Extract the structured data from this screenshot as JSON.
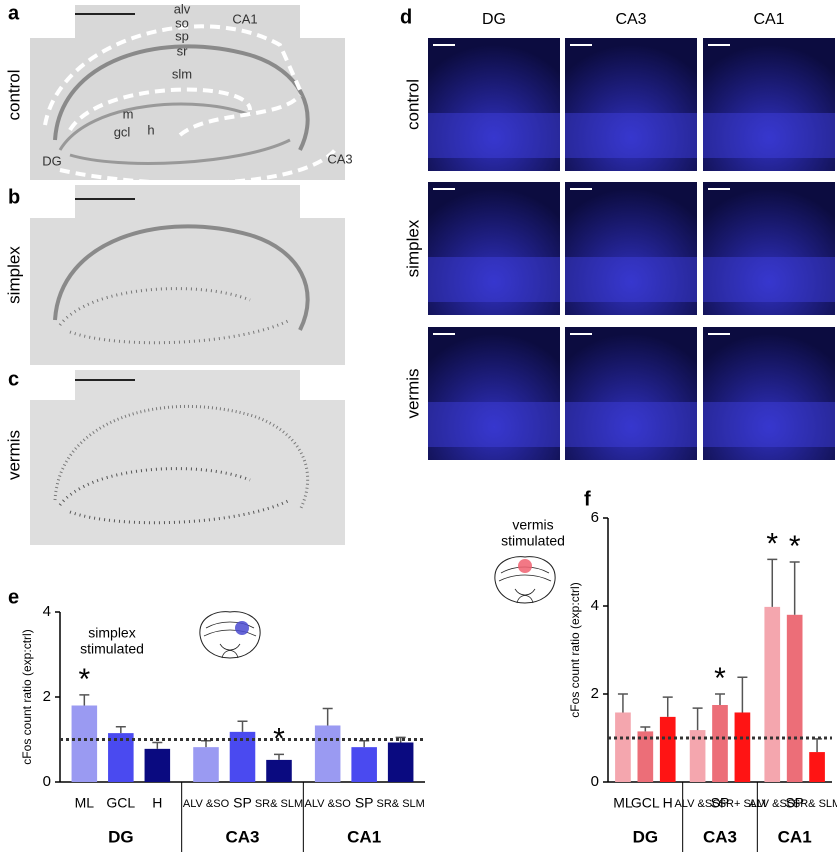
{
  "figure": {
    "panel_labels": [
      "a",
      "b",
      "c",
      "d",
      "e",
      "f"
    ],
    "hippocampus": {
      "conditions": [
        "control",
        "simplex",
        "vermis"
      ],
      "region_labels": [
        "alv",
        "so",
        "sp",
        "sr",
        "slm",
        "CA1",
        "m",
        "gcl",
        "h",
        "DG",
        "CA3"
      ]
    },
    "confocal": {
      "columns": [
        "DG",
        "CA3",
        "CA1"
      ],
      "rows": [
        "control",
        "simplex",
        "vermis"
      ]
    }
  },
  "chart_data": [
    {
      "type": "bar",
      "y_label": "cFos count ratio (exp:ctrl)",
      "annotation_lines": [
        "simplex",
        "stimulated"
      ],
      "categories": [
        "ML",
        "GCL",
        "H",
        "ALV &SO",
        "SP",
        "SR& SLM",
        "ALV &SO",
        "SP",
        "SR& SLM"
      ],
      "groups": [
        "DG",
        "CA3",
        "CA1"
      ],
      "values": [
        1.8,
        1.15,
        0.78,
        0.82,
        1.18,
        0.52,
        1.33,
        0.82,
        0.93
      ],
      "errors": [
        0.25,
        0.15,
        0.15,
        0.15,
        0.25,
        0.13,
        0.4,
        0.15,
        0.12
      ],
      "colors": [
        "#9a9af2",
        "#4a4af0",
        "#0a0a80",
        "#9a9af2",
        "#4a4af0",
        "#0a0a80",
        "#9a9af2",
        "#4a4af0",
        "#0a0a80"
      ],
      "significance_marker": "*",
      "significant": [
        true,
        false,
        false,
        false,
        false,
        true,
        false,
        false,
        false
      ],
      "reference_line": 1,
      "ylim": [
        0,
        4
      ],
      "yticks": [
        0,
        2,
        4
      ]
    },
    {
      "type": "bar",
      "y_label": "cFos count ratio (exp:ctrl)",
      "annotation_lines": [
        "vermis",
        "stimulated"
      ],
      "categories": [
        "ML",
        "GCL",
        "H",
        "ALV &SO",
        "SP",
        "SR+ SLM",
        "ALV &SO",
        "SP",
        "SR& SLM"
      ],
      "groups": [
        "DG",
        "CA3",
        "CA1"
      ],
      "values": [
        1.58,
        1.15,
        1.48,
        1.18,
        1.75,
        1.58,
        3.98,
        3.8,
        0.68
      ],
      "errors": [
        0.42,
        0.1,
        0.45,
        0.5,
        0.25,
        0.8,
        1.08,
        1.2,
        0.3
      ],
      "colors": [
        "#f4a6ae",
        "#ec6e78",
        "#ff1414",
        "#f4a6ae",
        "#ec6e78",
        "#ff1414",
        "#f4a6ae",
        "#ec6e78",
        "#ff1414"
      ],
      "significance_marker": "*",
      "significant": [
        false,
        false,
        false,
        false,
        true,
        false,
        true,
        true,
        false
      ],
      "reference_line": 1,
      "ylim": [
        0,
        6
      ],
      "yticks": [
        0,
        2,
        4,
        6
      ]
    }
  ]
}
